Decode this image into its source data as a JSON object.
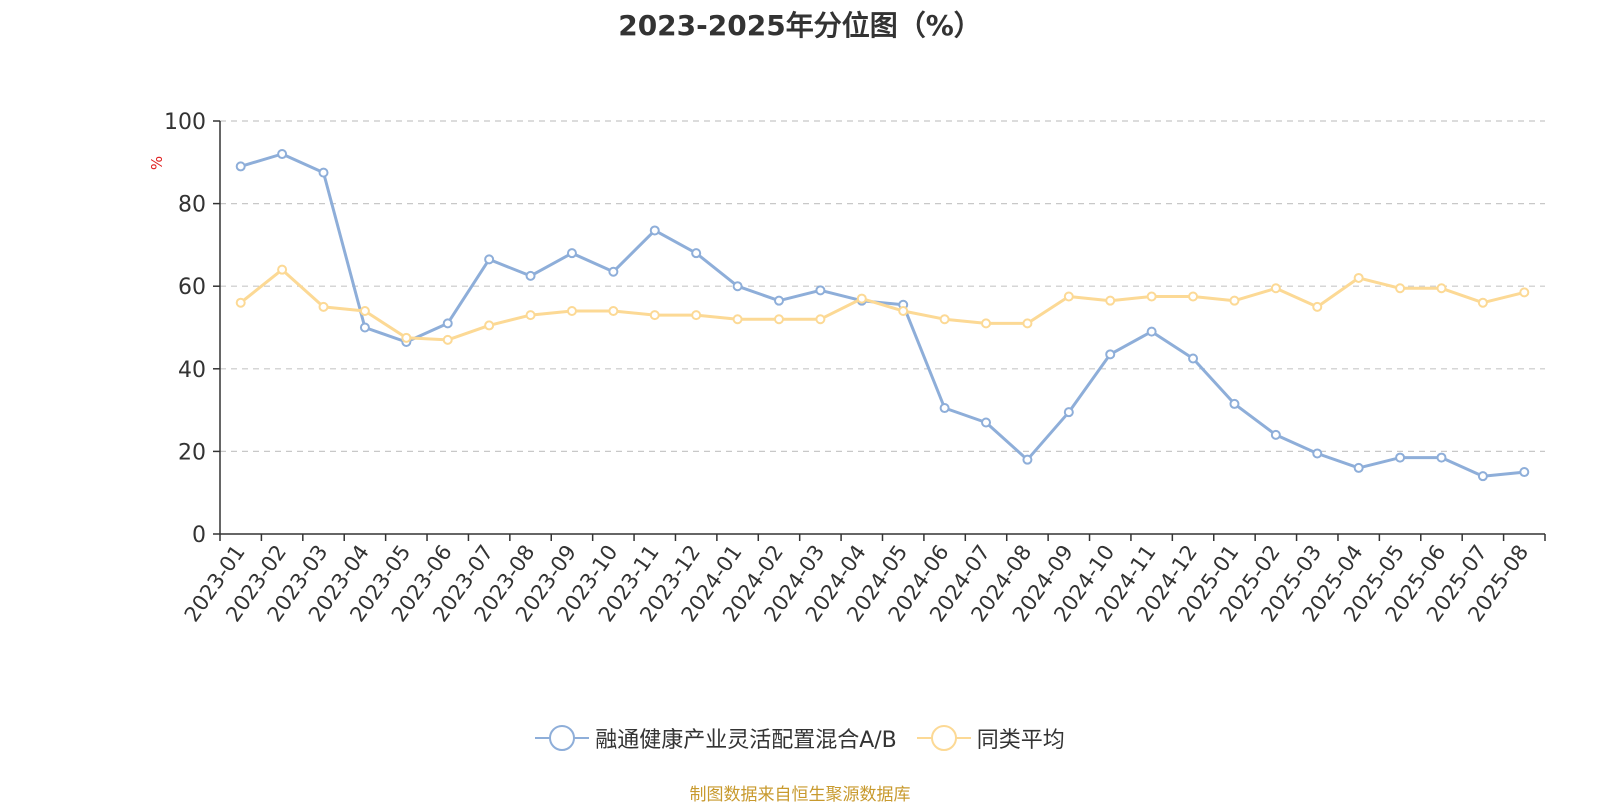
{
  "title": "2023-2025年分位图（%）",
  "source_note": "制图数据来自恒生聚源数据库",
  "chart_data": {
    "type": "line",
    "title": "2023-2025年分位图（%）",
    "ylabel": "%",
    "ylim": [
      0,
      100
    ],
    "yticks": [
      "0",
      "20",
      "40",
      "60",
      "80",
      "100"
    ],
    "grid": true,
    "legend_position": "bottom",
    "categories": [
      "2023-01",
      "2023-02",
      "2023-03",
      "2023-04",
      "2023-05",
      "2023-06",
      "2023-07",
      "2023-08",
      "2023-09",
      "2023-10",
      "2023-11",
      "2023-12",
      "2024-01",
      "2024-02",
      "2024-03",
      "2024-04",
      "2024-05",
      "2024-06",
      "2024-07",
      "2024-08",
      "2024-09",
      "2024-10",
      "2024-11",
      "2024-12",
      "2025-01",
      "2025-02",
      "2025-03",
      "2025-04",
      "2025-05",
      "2025-06",
      "2025-07",
      "2025-08"
    ],
    "series": [
      {
        "name": "融通健康产业灵活配置混合A/B",
        "color": "#8eaed9",
        "values": [
          89,
          92,
          87.5,
          50,
          46.5,
          51,
          66.5,
          62.5,
          68,
          63.5,
          73.5,
          68,
          60,
          56.5,
          59,
          56.5,
          55.5,
          30.5,
          27,
          18,
          29.5,
          43.5,
          49,
          42.5,
          31.5,
          24,
          19.5,
          16,
          18.5,
          18.5,
          14,
          15
        ]
      },
      {
        "name": "同类平均",
        "color": "#fcd995",
        "values": [
          56,
          64,
          55,
          54,
          47.5,
          47,
          50.5,
          53,
          54,
          54,
          53,
          53,
          52,
          52,
          52,
          57,
          54,
          52,
          51,
          51,
          57.5,
          56.5,
          57.5,
          57.5,
          56.5,
          59.5,
          55,
          62,
          59.5,
          59.5,
          56,
          58.5
        ]
      }
    ]
  }
}
